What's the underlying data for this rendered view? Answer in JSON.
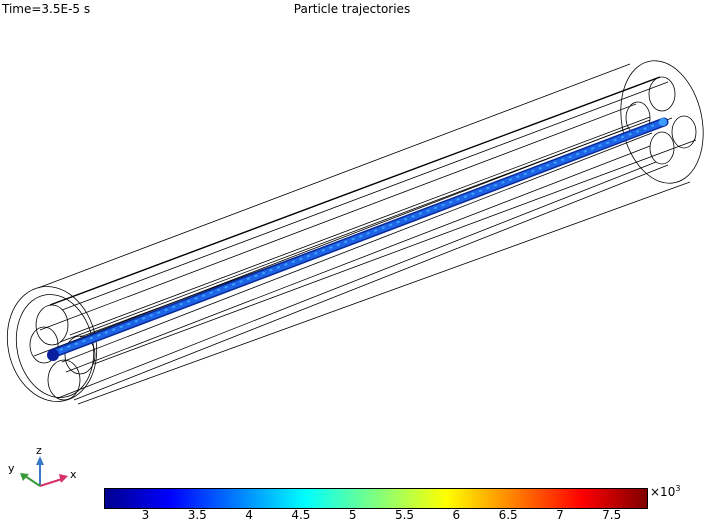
{
  "header": {
    "time_label": "Time=3.5E-5 s",
    "title": "Particle trajectories"
  },
  "axes_triad": {
    "x": "x",
    "y": "y",
    "z": "z"
  },
  "colorbar": {
    "multiplier_prefix": "×10",
    "multiplier_exponent": "3",
    "min": 2.6,
    "max": 7.85,
    "ticks": [
      "3",
      "3.5",
      "4",
      "4.5",
      "5",
      "5.5",
      "6",
      "6.5",
      "7",
      "7.5"
    ],
    "tick_values": [
      3,
      3.5,
      4,
      4.5,
      5,
      5.5,
      6,
      6.5,
      7,
      7.5
    ],
    "colormap": "jet"
  },
  "colors": {
    "geometry_edges": "#000000",
    "trajectory": "#1e64e6",
    "x_axis": "#d8306a",
    "y_axis": "#3a9a3a",
    "z_axis": "#3a7ac8"
  }
}
